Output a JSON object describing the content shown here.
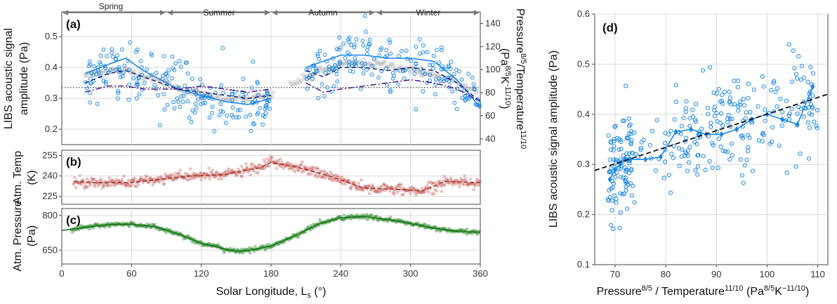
{
  "figure": {
    "left_xlabel": "Solar Longitude, L",
    "left_xlabel_sub": "s",
    "left_xlabel_unit": " (°)",
    "panel_a_ylabel_1": "LIBS acoustic signal",
    "panel_a_ylabel_2": "amplitude (Pa)",
    "panel_a_y2label_1": "Pressure",
    "panel_a_y2label_1_sup": "8/5",
    "panel_a_y2label_1b": "/Temperature",
    "panel_a_y2label_1b_sup": "11/10",
    "panel_a_y2label_2": "(Pa",
    "panel_a_y2label_2_sup": "8/5",
    "panel_a_y2label_2b": "K",
    "panel_a_y2label_2b_sup": "-11/10",
    "panel_a_y2label_2c": ")",
    "panel_b_ylabel_1": "Atm. Temp",
    "panel_b_ylabel_2": "(K)",
    "panel_c_ylabel_1": "Atm. Pressure",
    "panel_c_ylabel_2": "(Pa)",
    "panel_d_ylabel": "LIBS acoustic signal amplitude (Pa)",
    "panel_d_xlabel": "Pressure",
    "panel_d_xlabel_sup1": "8/5",
    "panel_d_xlabel_mid": " / Temperature",
    "panel_d_xlabel_sup2": "11/10",
    "panel_d_xlabel_unit": " (Pa",
    "panel_d_xlabel_unit_sup1": "8/5",
    "panel_d_xlabel_unit_k": "K",
    "panel_d_xlabel_unit_sup2": "−11/10",
    "panel_d_xlabel_end": ")",
    "seasons": [
      "Spring",
      "Summer",
      "Autumn",
      "Winter"
    ],
    "colors": {
      "libs": "#1e88e5",
      "libs_dark": "#1565c0",
      "dash_blue": "#1a237e",
      "dashdot_purple": "#4a148c",
      "grey_points": "#9e9e9e",
      "temp": "#c0504d",
      "pressure": "#2e8b2e",
      "fit": "#111111"
    }
  },
  "chart_data": [
    {
      "panel": "a",
      "label": "(a)",
      "type": "scatter",
      "x_range": [
        0,
        360
      ],
      "ylim": [
        0.15,
        0.58
      ],
      "y_ticks": [
        0.2,
        0.3,
        0.4,
        0.5
      ],
      "y2lim": [
        35,
        150
      ],
      "y2_ticks": [
        40,
        60,
        80,
        100,
        120,
        140
      ],
      "reference_line_y": 0.335,
      "season_boundaries": [
        0,
        90,
        180,
        270,
        360
      ],
      "libs_points_scatter_mean_by_ls": [
        [
          20,
          0.36
        ],
        [
          30,
          0.37
        ],
        [
          40,
          0.4
        ],
        [
          50,
          0.41
        ],
        [
          60,
          0.39
        ],
        [
          70,
          0.37
        ],
        [
          80,
          0.37
        ],
        [
          90,
          0.36
        ],
        [
          100,
          0.33
        ],
        [
          110,
          0.32
        ],
        [
          120,
          0.31
        ],
        [
          130,
          0.3
        ],
        [
          140,
          0.29
        ],
        [
          150,
          0.28
        ],
        [
          160,
          0.28
        ],
        [
          170,
          0.29
        ],
        [
          180,
          0.31
        ],
        [
          210,
          0.4
        ],
        [
          220,
          0.37
        ],
        [
          230,
          0.4
        ],
        [
          240,
          0.42
        ],
        [
          250,
          0.43
        ],
        [
          260,
          0.42
        ],
        [
          270,
          0.42
        ],
        [
          280,
          0.41
        ],
        [
          290,
          0.4
        ],
        [
          300,
          0.41
        ],
        [
          310,
          0.42
        ],
        [
          320,
          0.39
        ],
        [
          330,
          0.37
        ],
        [
          340,
          0.34
        ],
        [
          350,
          0.31
        ],
        [
          360,
          0.28
        ]
      ],
      "smooth_solid": {
        "x": [
          20,
          40,
          55,
          70,
          85,
          100,
          120,
          140,
          160,
          180,
          210,
          225,
          240,
          260,
          280,
          300,
          320,
          340,
          360
        ],
        "y": [
          0.38,
          0.41,
          0.43,
          0.39,
          0.36,
          0.33,
          0.31,
          0.29,
          0.28,
          0.3,
          0.4,
          0.42,
          0.44,
          0.44,
          0.43,
          0.43,
          0.42,
          0.36,
          0.27
        ]
      },
      "smooth_dash": {
        "x": [
          20,
          40,
          55,
          70,
          85,
          100,
          120,
          140,
          160,
          180,
          210,
          225,
          240,
          260,
          280,
          300,
          320,
          340,
          360
        ],
        "y": [
          0.35,
          0.38,
          0.39,
          0.37,
          0.35,
          0.33,
          0.32,
          0.31,
          0.3,
          0.31,
          0.39,
          0.37,
          0.4,
          0.4,
          0.39,
          0.4,
          0.39,
          0.35,
          0.29
        ]
      },
      "smooth_dashdot": {
        "x": [
          20,
          40,
          55,
          70,
          85,
          100,
          120,
          140,
          160,
          180,
          210,
          225,
          240,
          260,
          280,
          300,
          320,
          340,
          360
        ],
        "y": [
          0.32,
          0.34,
          0.34,
          0.33,
          0.33,
          0.33,
          0.34,
          0.33,
          0.32,
          0.33,
          0.35,
          0.32,
          0.33,
          0.34,
          0.35,
          0.36,
          0.35,
          0.33,
          0.29
        ]
      },
      "pressure_ratio_grey_y2": {
        "x": [
          20,
          40,
          60,
          80,
          100,
          120,
          140,
          160,
          180,
          200,
          220,
          240,
          260,
          280,
          300,
          320,
          340,
          360
        ],
        "y": [
          95,
          100,
          98,
          92,
          84,
          78,
          75,
          74,
          78,
          88,
          98,
          104,
          106,
          104,
          100,
          95,
          88,
          80
        ]
      }
    },
    {
      "panel": "b",
      "label": "(b)",
      "type": "scatter",
      "x_range": [
        0,
        360
      ],
      "ylim": [
        219,
        259
      ],
      "y_ticks": [
        225,
        240,
        255
      ],
      "trend": {
        "x": [
          10,
          30,
          60,
          90,
          110,
          140,
          170,
          180,
          200,
          230,
          260,
          290,
          310,
          330,
          360
        ],
        "y": [
          236,
          235,
          235,
          238,
          240,
          241,
          246,
          250,
          247,
          240,
          231,
          230,
          229,
          236,
          235
        ]
      }
    },
    {
      "panel": "c",
      "label": "(c)",
      "type": "scatter",
      "x_range": [
        0,
        360
      ],
      "ylim": [
        590,
        830
      ],
      "y_ticks": [
        650,
        800
      ],
      "trend": {
        "x": [
          0,
          20,
          40,
          60,
          80,
          100,
          120,
          140,
          150,
          160,
          180,
          200,
          220,
          240,
          260,
          280,
          300,
          320,
          340,
          360
        ],
        "y": [
          735,
          748,
          760,
          762,
          752,
          720,
          680,
          655,
          645,
          648,
          668,
          710,
          762,
          790,
          795,
          783,
          765,
          745,
          730,
          728
        ]
      }
    },
    {
      "panel": "d",
      "label": "(d)",
      "type": "scatter",
      "x_range": [
        66,
        112
      ],
      "ylim": [
        0.1,
        0.6
      ],
      "x_ticks": [
        70,
        80,
        90,
        100,
        110
      ],
      "y_ticks": [
        0.1,
        0.2,
        0.3,
        0.4,
        0.5,
        0.6
      ],
      "fit_line": {
        "x": [
          66,
          112
        ],
        "y": [
          0.288,
          0.44
        ]
      },
      "binned": {
        "x": [
          69,
          70,
          71,
          72,
          73,
          76,
          79,
          82,
          85,
          88,
          91,
          94,
          97,
          100,
          103,
          106,
          109
        ],
        "y": [
          0.27,
          0.29,
          0.3,
          0.31,
          0.31,
          0.31,
          0.315,
          0.365,
          0.37,
          0.36,
          0.36,
          0.37,
          0.39,
          0.4,
          0.39,
          0.38,
          0.455
        ]
      }
    }
  ]
}
